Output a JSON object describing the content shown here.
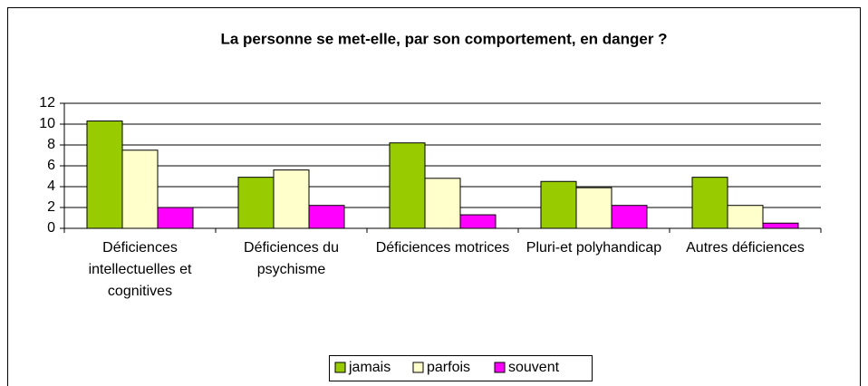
{
  "chart_data": {
    "type": "bar",
    "title": "La personne se met-elle, par son comportement, en danger ?",
    "categories": [
      "Déficiences intellectuelles et cognitives",
      "Déficiences du psychisme",
      "Déficiences motrices",
      "Pluri-et polyhandicap",
      "Autres déficiences"
    ],
    "series": [
      {
        "name": "jamais",
        "color": "#99cc00",
        "values": [
          10.3,
          4.9,
          8.2,
          4.5,
          4.9
        ]
      },
      {
        "name": "parfois",
        "color": "#ffffcc",
        "values": [
          7.5,
          5.6,
          4.8,
          3.9,
          2.2
        ]
      },
      {
        "name": "souvent",
        "color": "#ff00ff",
        "values": [
          2.0,
          2.2,
          1.3,
          2.2,
          0.5
        ]
      }
    ],
    "ylim": [
      0,
      12
    ],
    "yticks": [
      0,
      2,
      4,
      6,
      8,
      10,
      12
    ],
    "grid": true
  }
}
